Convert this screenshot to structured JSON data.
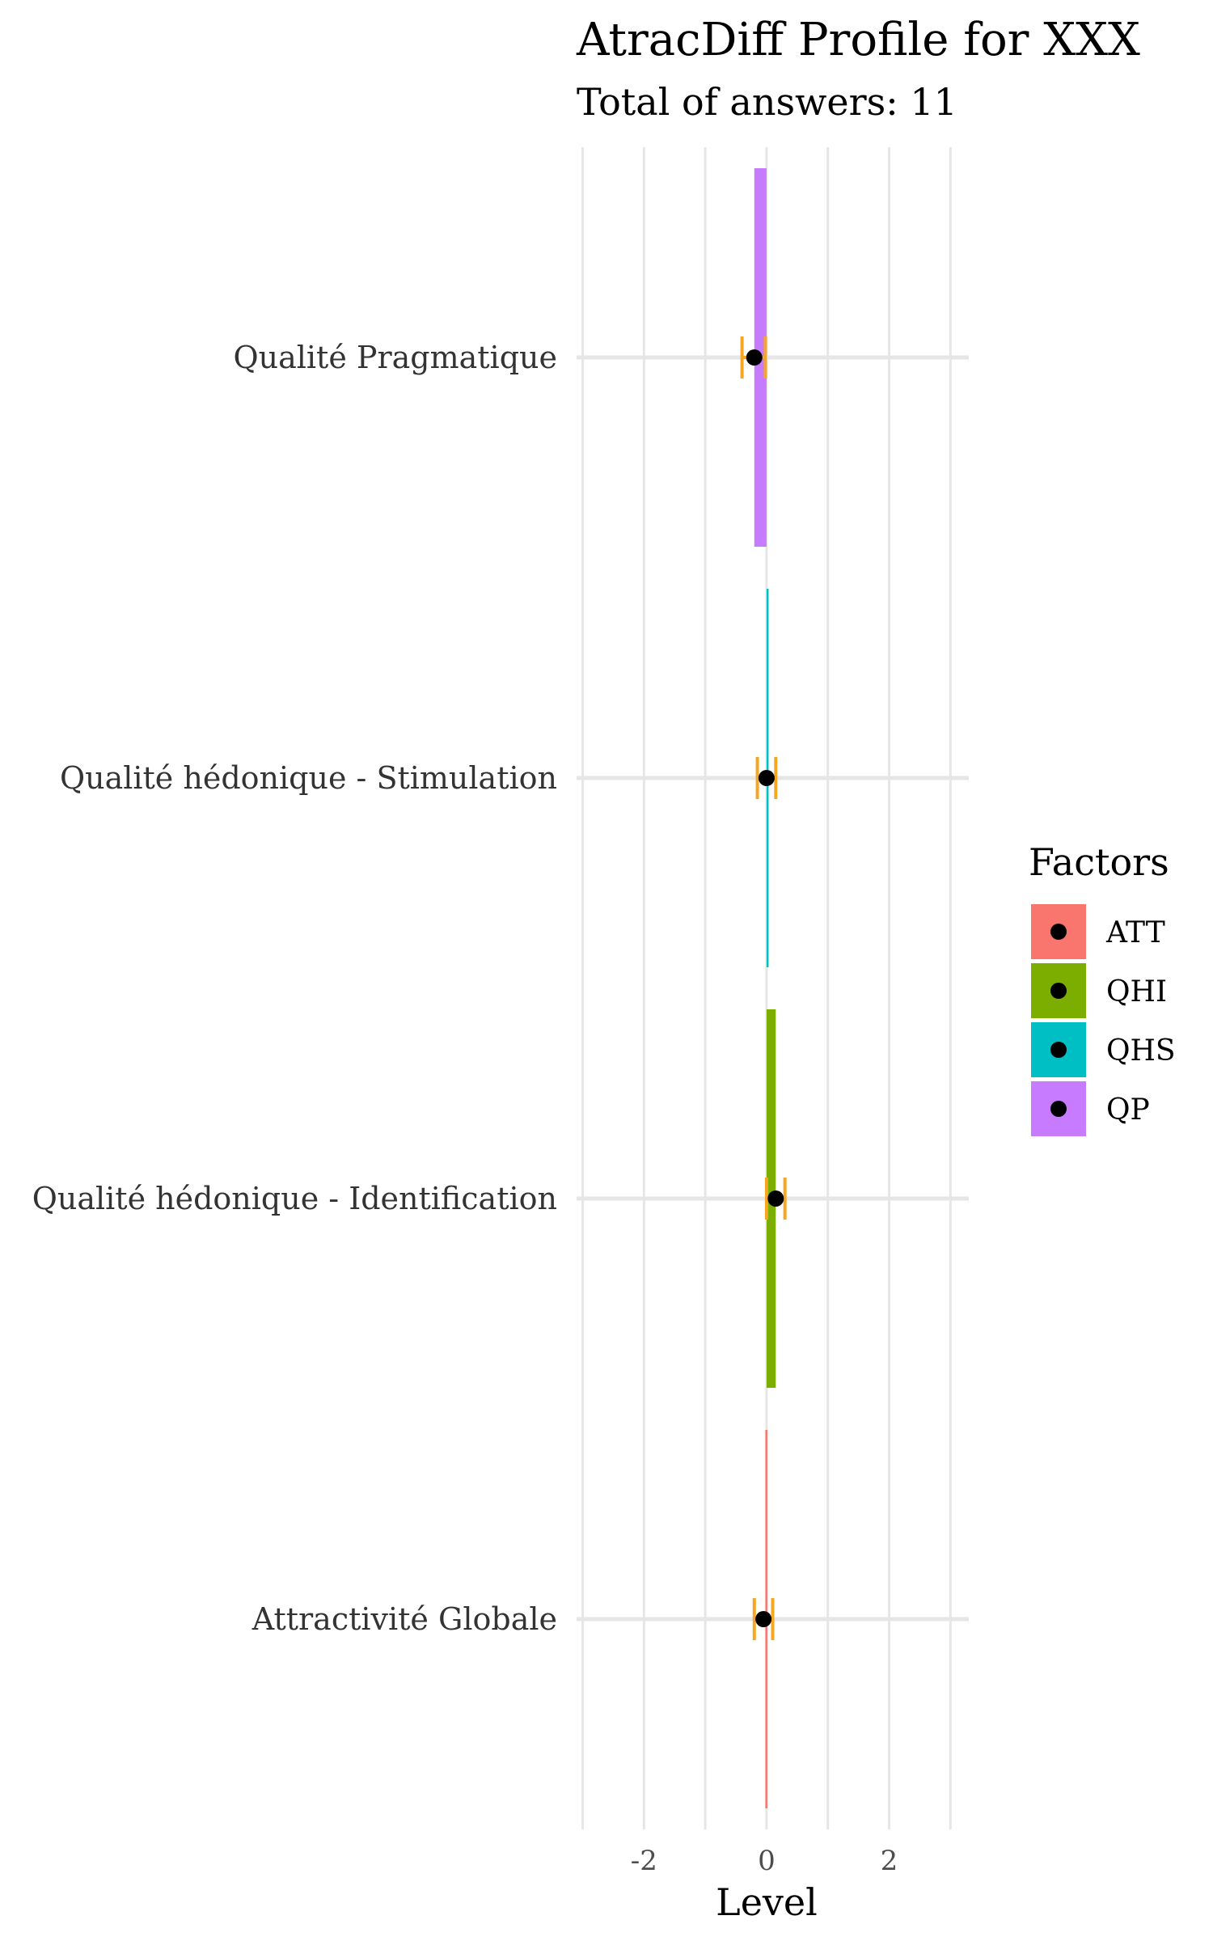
{
  "chart_data": {
    "type": "bar",
    "orientation": "horizontal",
    "title": "AtracDiff Profile for XXX",
    "subtitle": "Total of answers: 11",
    "xlabel": "Level",
    "ylabel": "",
    "xlim": [
      -3.1,
      3.3
    ],
    "x_ticks": [
      -2,
      0,
      2
    ],
    "x_minor_ticks": [
      -3,
      -1,
      1,
      3
    ],
    "grid": true,
    "legend_position": "right",
    "legend_title": "Factors",
    "categories": [
      "Qualité Pragmatique",
      "Qualité hédonique - Stimulation",
      "Qualité hédonique - Identification",
      "Attractivité Globale"
    ],
    "series": [
      {
        "name": "ATT",
        "color": "#F8766D",
        "category": "Attractivité Globale",
        "value": -0.02,
        "mean": -0.05,
        "ci": [
          -0.2,
          0.1
        ]
      },
      {
        "name": "QHI",
        "color": "#7CAE00",
        "category": "Qualité hédonique - Identification",
        "value": 0.15,
        "mean": 0.15,
        "ci": [
          0.0,
          0.3
        ]
      },
      {
        "name": "QHS",
        "color": "#00BFC4",
        "category": "Qualité hédonique - Stimulation",
        "value": 0.0,
        "mean": 0.0,
        "ci": [
          -0.15,
          0.15
        ]
      },
      {
        "name": "QP",
        "color": "#C77CFF",
        "category": "Qualité Pragmatique",
        "value": -0.2,
        "mean": -0.2,
        "ci": [
          -0.4,
          -0.02
        ]
      }
    ],
    "errorbar_color": "#F5A623",
    "point_color": "#000000"
  }
}
